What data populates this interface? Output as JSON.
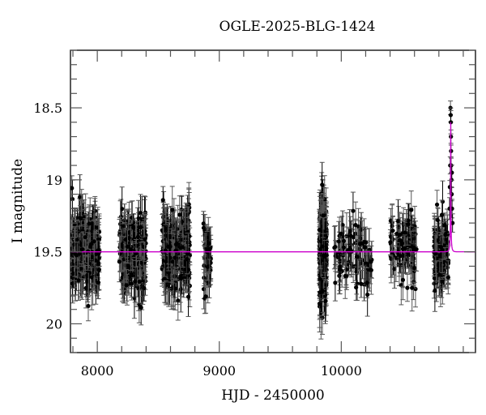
{
  "chart_data": {
    "type": "scatter",
    "title": "OGLE-2025-BLG-1424",
    "xlabel": "HJD - 2450000",
    "ylabel": "I magnitude",
    "xlim": [
      7780,
      11100
    ],
    "ylim": [
      20.2,
      18.1
    ],
    "y_inverted": true,
    "x_ticks": [
      8000,
      9000,
      10000
    ],
    "x_tick_labels": [
      "8000",
      "9000",
      "10000"
    ],
    "x_minor_step": 200,
    "y_ticks": [
      18.5,
      19,
      19.5,
      20
    ],
    "y_tick_labels": [
      "18.5",
      "19",
      "19.5",
      "20"
    ],
    "y_minor_step": 0.1,
    "grid": false,
    "legend": null,
    "baseline_magnitude": 19.5,
    "series": [
      {
        "name": "OGLE I-band photometry",
        "style": "points with error bars",
        "color": "#000000",
        "errorbar_color": "#555555",
        "seasons": [
          {
            "x_start": 7790,
            "x_end": 8020,
            "n": 260,
            "mean": 19.5,
            "scatter": 0.13,
            "err": 0.12
          },
          {
            "x_start": 8180,
            "x_end": 8400,
            "n": 200,
            "mean": 19.5,
            "scatter": 0.13,
            "err": 0.12
          },
          {
            "x_start": 8530,
            "x_end": 8760,
            "n": 220,
            "mean": 19.5,
            "scatter": 0.14,
            "err": 0.13
          },
          {
            "x_start": 8870,
            "x_end": 8930,
            "n": 40,
            "mean": 19.55,
            "scatter": 0.13,
            "err": 0.12
          },
          {
            "x_start": 9820,
            "x_end": 9880,
            "n": 260,
            "mean": 19.5,
            "scatter": 0.17,
            "err": 0.15
          },
          {
            "x_start": 9940,
            "x_end": 10250,
            "n": 90,
            "mean": 19.53,
            "scatter": 0.12,
            "err": 0.12
          },
          {
            "x_start": 10400,
            "x_end": 10620,
            "n": 90,
            "mean": 19.47,
            "scatter": 0.11,
            "err": 0.12
          },
          {
            "x_start": 10760,
            "x_end": 10880,
            "n": 100,
            "mean": 19.52,
            "scatter": 0.12,
            "err": 0.12
          }
        ],
        "event_points": [
          {
            "x": 10895,
            "y": 18.5
          },
          {
            "x": 10897,
            "y": 18.55
          },
          {
            "x": 10898,
            "y": 18.6
          },
          {
            "x": 10899,
            "y": 18.7
          },
          {
            "x": 10900,
            "y": 18.8
          },
          {
            "x": 10901,
            "y": 18.9
          },
          {
            "x": 10903,
            "y": 19.0
          },
          {
            "x": 10905,
            "y": 19.1
          },
          {
            "x": 10908,
            "y": 19.2
          },
          {
            "x": 10912,
            "y": 19.3
          },
          {
            "x": 10890,
            "y": 19.05
          },
          {
            "x": 10888,
            "y": 19.2
          },
          {
            "x": 10893,
            "y": 18.9
          },
          {
            "x": 10906,
            "y": 18.95
          }
        ]
      },
      {
        "name": "Microlensing model",
        "style": "line",
        "color": "#cc00cc",
        "model": {
          "t0": 10897,
          "u0": 0.05,
          "tE": 12,
          "baseline": 19.5,
          "peak_magnitude": 18.6
        }
      }
    ]
  }
}
